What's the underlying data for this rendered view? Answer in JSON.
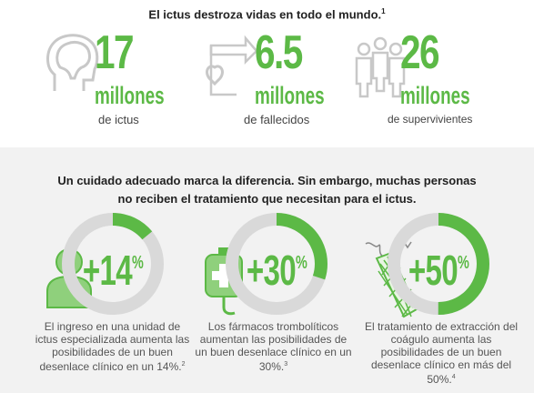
{
  "headline": {
    "text": "El ictus destroza vidas en todo el mundo.",
    "ref": "1"
  },
  "stats": [
    {
      "number": "17",
      "unit": "millones",
      "label": "de ictus",
      "icon": "head-brain-icon"
    },
    {
      "number": "6.5",
      "unit": "millones",
      "label": "de fallecidos",
      "icon": "heart-monitor-icon"
    },
    {
      "number": "26",
      "unit": "millones",
      "label": "de supervivientes",
      "icon": "people-group-icon"
    }
  ],
  "subheadline": {
    "line1": "Un cuidado adecuado marca la diferencia. Sin embargo, muchas personas",
    "line2": "no reciben el tratamiento que necesitan para el ictus."
  },
  "benefits": [
    {
      "value": "+14",
      "percent_sign": "%",
      "fraction": 0.14,
      "icon": "person-icon",
      "caption": "El ingreso en una unidad de ictus especializada aumenta las posibilidades de un buen desenlace clínico en un 14%.",
      "ref": "2"
    },
    {
      "value": "+30",
      "percent_sign": "%",
      "fraction": 0.3,
      "icon": "iv-bag-icon",
      "caption": "Los fármacos trombolíticos aumentan las posibilidades de un buen desenlace clínico en un 30%.",
      "ref": "3"
    },
    {
      "value": "+50",
      "percent_sign": "%",
      "fraction": 0.5,
      "icon": "stent-retriever-icon",
      "caption": "El tratamiento de extracción del coágulo aumenta las posibilidades de un buen desenlace clínico en más del 50%.",
      "ref": "4"
    }
  ],
  "colors": {
    "accent": "#5cb946",
    "ring_gray": "#d9d9d9",
    "icon_gray": "#c8c8c8"
  }
}
